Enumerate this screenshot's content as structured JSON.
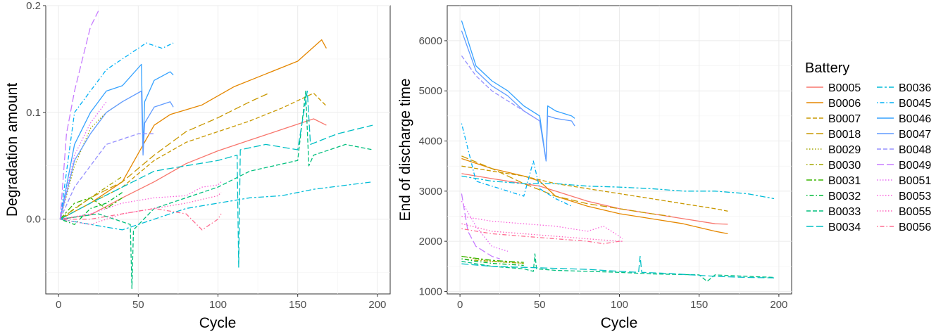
{
  "figure": {
    "legend_title": "Battery",
    "legend_position": "right",
    "batteries": [
      {
        "name": "B0005",
        "color": "#F8766D",
        "dash": "solid"
      },
      {
        "name": "B0006",
        "color": "#E58700",
        "dash": "solid"
      },
      {
        "name": "B0007",
        "color": "#C99800",
        "dash": "dashed"
      },
      {
        "name": "B0018",
        "color": "#C99800",
        "dash": "longdash"
      },
      {
        "name": "B0029",
        "color": "#A3A500",
        "dash": "dotted"
      },
      {
        "name": "B0030",
        "color": "#A3A500",
        "dash": "dotdash"
      },
      {
        "name": "B0031",
        "color": "#39B600",
        "dash": "twodash"
      },
      {
        "name": "B0032",
        "color": "#00BA38",
        "dash": "dotdash"
      },
      {
        "name": "B0033",
        "color": "#00BF7D",
        "dash": "dashed"
      },
      {
        "name": "B0034",
        "color": "#00BFC4",
        "dash": "longdash"
      },
      {
        "name": "B0036",
        "color": "#00BCD8",
        "dash": "twodash"
      },
      {
        "name": "B0045",
        "color": "#00B0F6",
        "dash": "dotdash"
      },
      {
        "name": "B0046",
        "color": "#35A2FF",
        "dash": "solid"
      },
      {
        "name": "B0047",
        "color": "#619CFF",
        "dash": "solid"
      },
      {
        "name": "B0048",
        "color": "#9590FF",
        "dash": "dashed"
      },
      {
        "name": "B0049",
        "color": "#C77CFF",
        "dash": "longdash"
      },
      {
        "name": "B0051",
        "color": "#E76BF3",
        "dash": "dotted"
      },
      {
        "name": "B0053",
        "color": "#FA62DB",
        "dash": "dotted"
      },
      {
        "name": "B0055",
        "color": "#FF62BC",
        "dash": "dotted"
      },
      {
        "name": "B0056",
        "color": "#FF6C91",
        "dash": "dotdash"
      }
    ]
  },
  "chart_data": [
    {
      "type": "line",
      "xlabel": "Cycle",
      "ylabel": "Degradation amount",
      "xlim": [
        -8,
        208
      ],
      "ylim": [
        -0.07,
        0.2
      ],
      "xticks": [
        0,
        50,
        100,
        150,
        200
      ],
      "xtick_labels": [
        "0",
        "50",
        "100",
        "150",
        "200"
      ],
      "yticks": [
        0.0,
        0.1,
        0.2
      ],
      "ytick_labels": [
        "0.0",
        "0.1",
        "0.2"
      ],
      "grid": true,
      "series": [
        {
          "name": "B0005",
          "x": [
            1,
            20,
            40,
            60,
            80,
            100,
            120,
            140,
            160,
            168
          ],
          "y": [
            0,
            0.004,
            0.02,
            0.035,
            0.052,
            0.064,
            0.074,
            0.084,
            0.094,
            0.088
          ]
        },
        {
          "name": "B0006",
          "x": [
            1,
            20,
            40,
            60,
            70,
            90,
            110,
            130,
            150,
            165,
            168
          ],
          "y": [
            0,
            0.015,
            0.035,
            0.088,
            0.098,
            0.107,
            0.124,
            0.136,
            0.148,
            0.168,
            0.16
          ]
        },
        {
          "name": "B0007",
          "x": [
            1,
            20,
            40,
            60,
            80,
            100,
            120,
            140,
            160,
            168
          ],
          "y": [
            0,
            0.015,
            0.03,
            0.055,
            0.072,
            0.082,
            0.092,
            0.104,
            0.118,
            0.106
          ]
        },
        {
          "name": "B0018",
          "x": [
            1,
            20,
            40,
            60,
            80,
            100,
            120,
            132
          ],
          "y": [
            0,
            0.02,
            0.035,
            0.06,
            0.082,
            0.095,
            0.11,
            0.118
          ]
        },
        {
          "name": "B0029",
          "x": [
            1,
            10,
            20,
            30,
            40
          ],
          "y": [
            0,
            0.05,
            0.085,
            0.1,
            0.11
          ]
        },
        {
          "name": "B0030",
          "x": [
            1,
            10,
            20,
            30,
            40
          ],
          "y": [
            0,
            0.01,
            0.02,
            0.03,
            0.04
          ]
        },
        {
          "name": "B0031",
          "x": [
            1,
            10,
            20,
            30,
            40
          ],
          "y": [
            0,
            0.015,
            0.02,
            0.01,
            0.02
          ]
        },
        {
          "name": "B0032",
          "x": [
            1,
            10,
            20,
            30,
            40
          ],
          "y": [
            0,
            -0.005,
            0.01,
            0.015,
            0.025
          ]
        },
        {
          "name": "B0033",
          "x": [
            1,
            25,
            45,
            46,
            47,
            60,
            80,
            100,
            120,
            150,
            155,
            157,
            160,
            180,
            197
          ],
          "y": [
            0,
            0.005,
            -0.005,
            -0.065,
            -0.01,
            0.01,
            0.02,
            0.03,
            0.045,
            0.055,
            0.12,
            0.05,
            0.06,
            0.07,
            0.065
          ]
        },
        {
          "name": "B0034",
          "x": [
            1,
            20,
            40,
            60,
            80,
            100,
            112,
            113,
            114,
            130,
            150,
            156,
            158,
            175,
            197
          ],
          "y": [
            0,
            0.015,
            0.03,
            0.045,
            0.05,
            0.055,
            0.06,
            -0.045,
            0.065,
            0.07,
            0.065,
            0.12,
            0.07,
            0.08,
            0.088
          ]
        },
        {
          "name": "B0036",
          "x": [
            1,
            40,
            60,
            80,
            100,
            120,
            140,
            160,
            197
          ],
          "y": [
            0,
            -0.01,
            0.0,
            0.01,
            0.015,
            0.02,
            0.022,
            0.028,
            0.035
          ]
        },
        {
          "name": "B0045",
          "x": [
            1,
            10,
            20,
            30,
            40,
            55,
            65,
            72
          ],
          "y": [
            0,
            0.1,
            0.12,
            0.14,
            0.15,
            0.165,
            0.16,
            0.165
          ]
        },
        {
          "name": "B0046",
          "x": [
            1,
            10,
            20,
            30,
            40,
            52,
            53,
            54,
            60,
            70,
            72
          ],
          "y": [
            0,
            0.07,
            0.1,
            0.12,
            0.125,
            0.145,
            0.065,
            0.11,
            0.13,
            0.138,
            0.135
          ]
        },
        {
          "name": "B0047",
          "x": [
            1,
            10,
            20,
            30,
            40,
            52,
            53,
            54,
            60,
            70,
            72
          ],
          "y": [
            0,
            0.055,
            0.08,
            0.1,
            0.11,
            0.12,
            0.06,
            0.09,
            0.105,
            0.11,
            0.105
          ]
        },
        {
          "name": "B0048",
          "x": [
            1,
            10,
            20,
            30,
            40,
            50,
            60
          ],
          "y": [
            0,
            0.03,
            0.05,
            0.07,
            0.075,
            0.08,
            0.08
          ]
        },
        {
          "name": "B0049",
          "x": [
            1,
            5,
            10,
            15,
            20,
            25
          ],
          "y": [
            0,
            0.08,
            0.12,
            0.15,
            0.18,
            0.195
          ]
        },
        {
          "name": "B0051",
          "x": [
            1,
            10,
            20,
            30
          ],
          "y": [
            0,
            0.06,
            0.09,
            0.11
          ]
        },
        {
          "name": "B0053",
          "x": [
            1,
            20,
            40,
            60,
            80,
            90,
            100,
            102
          ],
          "y": [
            0,
            0.005,
            0.015,
            0.02,
            0.022,
            0.03,
            0.032,
            0.035
          ]
        },
        {
          "name": "B0055",
          "x": [
            1,
            20,
            40,
            60,
            80,
            100,
            102
          ],
          "y": [
            0,
            -0.005,
            0.005,
            0.01,
            0.015,
            0.022,
            0.025
          ]
        },
        {
          "name": "B0056",
          "x": [
            1,
            20,
            40,
            60,
            80,
            90,
            100,
            102
          ],
          "y": [
            0,
            0.0,
            0.005,
            0.01,
            0.005,
            -0.01,
            0.0,
            0.005
          ]
        }
      ]
    },
    {
      "type": "line",
      "xlabel": "Cycle",
      "ylabel": "End of discharge time",
      "xlim": [
        -8,
        208
      ],
      "ylim": [
        950,
        6700
      ],
      "xticks": [
        0,
        50,
        100,
        150,
        200
      ],
      "xtick_labels": [
        "0",
        "50",
        "100",
        "150",
        "200"
      ],
      "yticks": [
        1000,
        2000,
        3000,
        4000,
        5000,
        6000
      ],
      "ytick_labels": [
        "1000",
        "2000",
        "3000",
        "4000",
        "5000",
        "6000"
      ],
      "grid": true,
      "series": [
        {
          "name": "B0005",
          "x": [
            1,
            20,
            40,
            50,
            60,
            80,
            100,
            120,
            140,
            160,
            168
          ],
          "y": [
            3350,
            3250,
            3150,
            3100,
            3000,
            2800,
            2650,
            2550,
            2450,
            2350,
            2340
          ]
        },
        {
          "name": "B0006",
          "x": [
            1,
            20,
            40,
            50,
            60,
            80,
            100,
            120,
            140,
            160,
            168
          ],
          "y": [
            3650,
            3450,
            3300,
            3200,
            2900,
            2700,
            2550,
            2450,
            2350,
            2200,
            2150
          ]
        },
        {
          "name": "B0007",
          "x": [
            1,
            20,
            40,
            60,
            80,
            100,
            120,
            140,
            160,
            168
          ],
          "y": [
            3500,
            3400,
            3300,
            3150,
            3050,
            2950,
            2850,
            2750,
            2650,
            2600
          ]
        },
        {
          "name": "B0018",
          "x": [
            1,
            20,
            40,
            60,
            80,
            100,
            120,
            132
          ],
          "y": [
            3700,
            3450,
            3150,
            2900,
            2750,
            2650,
            2550,
            2500
          ]
        },
        {
          "name": "B0029",
          "x": [
            1,
            10,
            20,
            30,
            40
          ],
          "y": [
            1700,
            1650,
            1600,
            1580,
            1560
          ]
        },
        {
          "name": "B0030",
          "x": [
            1,
            10,
            20,
            30,
            40
          ],
          "y": [
            1650,
            1620,
            1600,
            1580,
            1560
          ]
        },
        {
          "name": "B0031",
          "x": [
            1,
            10,
            20,
            30,
            40
          ],
          "y": [
            1700,
            1660,
            1620,
            1600,
            1580
          ]
        },
        {
          "name": "B0032",
          "x": [
            1,
            10,
            20,
            30,
            40
          ],
          "y": [
            1650,
            1600,
            1560,
            1540,
            1520
          ]
        },
        {
          "name": "B0033",
          "x": [
            1,
            20,
            40,
            46,
            47,
            48,
            60,
            80,
            100,
            120,
            150,
            155,
            160,
            180,
            197
          ],
          "y": [
            1600,
            1500,
            1450,
            1400,
            1750,
            1450,
            1420,
            1400,
            1380,
            1350,
            1330,
            1200,
            1330,
            1300,
            1280
          ]
        },
        {
          "name": "B0034",
          "x": [
            1,
            20,
            40,
            60,
            80,
            100,
            112,
            113,
            114,
            130,
            150,
            160,
            180,
            197
          ],
          "y": [
            1550,
            1500,
            1480,
            1460,
            1440,
            1400,
            1380,
            1700,
            1380,
            1360,
            1320,
            1300,
            1280,
            1270
          ]
        },
        {
          "name": "B0036",
          "x": [
            1,
            20,
            40,
            60,
            80,
            100,
            120,
            140,
            160,
            180,
            197
          ],
          "y": [
            3300,
            3200,
            3150,
            3150,
            3100,
            3080,
            3050,
            3000,
            3000,
            2950,
            2850
          ]
        },
        {
          "name": "B0045",
          "x": [
            1,
            10,
            20,
            30,
            40,
            46,
            50,
            60,
            70
          ],
          "y": [
            4350,
            3200,
            3100,
            3000,
            2900,
            3600,
            3050,
            2850,
            2700
          ]
        },
        {
          "name": "B0046",
          "x": [
            1,
            10,
            20,
            30,
            40,
            50,
            54,
            55,
            60,
            70,
            72
          ],
          "y": [
            6400,
            5500,
            5200,
            5000,
            4700,
            4500,
            3600,
            4700,
            4600,
            4500,
            4450
          ]
        },
        {
          "name": "B0047",
          "x": [
            1,
            10,
            20,
            30,
            40,
            50,
            54,
            55,
            60,
            70,
            72
          ],
          "y": [
            6200,
            5400,
            5100,
            4900,
            4600,
            4400,
            3600,
            4500,
            4450,
            4400,
            4300
          ]
        },
        {
          "name": "B0048",
          "x": [
            1,
            10,
            20,
            30,
            40,
            50
          ],
          "y": [
            5700,
            5300,
            5000,
            4800,
            4600,
            4400
          ]
        },
        {
          "name": "B0049",
          "x": [
            1,
            5,
            10,
            15,
            20,
            25
          ],
          "y": [
            2950,
            2200,
            1900,
            1800,
            1700,
            1650
          ]
        },
        {
          "name": "B0051",
          "x": [
            1,
            10,
            20,
            30
          ],
          "y": [
            2800,
            2300,
            1900,
            1800
          ]
        },
        {
          "name": "B0053",
          "x": [
            1,
            20,
            40,
            60,
            80,
            90,
            100,
            102
          ],
          "y": [
            2500,
            2400,
            2350,
            2300,
            2200,
            2300,
            2100,
            2050
          ]
        },
        {
          "name": "B0055",
          "x": [
            1,
            20,
            40,
            60,
            80,
            100,
            102
          ],
          "y": [
            2350,
            2200,
            2150,
            2100,
            2050,
            2000,
            2000
          ]
        },
        {
          "name": "B0056",
          "x": [
            1,
            20,
            40,
            60,
            80,
            90,
            100,
            102
          ],
          "y": [
            2250,
            2150,
            2100,
            2050,
            2000,
            1950,
            2000,
            2000
          ]
        }
      ]
    }
  ]
}
